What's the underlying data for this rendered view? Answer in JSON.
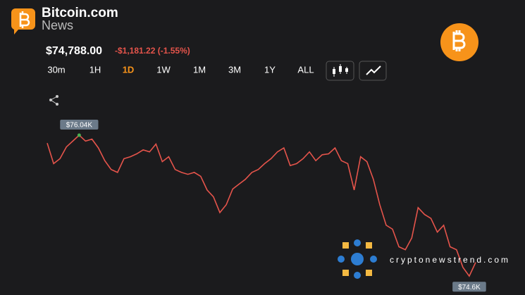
{
  "header": {
    "brand": "Bitcoin.com",
    "brand_sub": "News"
  },
  "ticker": {
    "price": "$74,788.00",
    "change": "-$1,181.22 (-1.55%)"
  },
  "timeframes": [
    "30m",
    "1H",
    "1D",
    "1W",
    "1M",
    "3M",
    "1Y",
    "ALL"
  ],
  "active_timeframe": "1D",
  "watermark": "cryptonewstrend.com",
  "chart_data": {
    "type": "line",
    "color": "#e5544b",
    "ylim": [
      74.4,
      76.4
    ],
    "values": [
      75.96,
      75.75,
      75.8,
      75.92,
      75.98,
      76.04,
      75.98,
      76.0,
      75.91,
      75.78,
      75.69,
      75.66,
      75.8,
      75.82,
      75.85,
      75.89,
      75.87,
      75.95,
      75.77,
      75.82,
      75.69,
      75.66,
      75.64,
      75.66,
      75.62,
      75.48,
      75.41,
      75.25,
      75.33,
      75.49,
      75.54,
      75.59,
      75.66,
      75.69,
      75.75,
      75.8,
      75.87,
      75.91,
      75.73,
      75.75,
      75.8,
      75.87,
      75.78,
      75.84,
      75.85,
      75.91,
      75.78,
      75.75,
      75.48,
      75.82,
      75.77,
      75.59,
      75.33,
      75.12,
      75.08,
      74.9,
      74.87,
      74.99,
      75.3,
      75.23,
      75.19,
      75.05,
      75.12,
      74.9,
      74.87,
      74.69,
      74.6,
      74.74
    ],
    "annotations": [
      {
        "value": 76.04,
        "label": "$76.04K"
      },
      {
        "value": 74.6,
        "label": "$74.6K"
      }
    ]
  }
}
